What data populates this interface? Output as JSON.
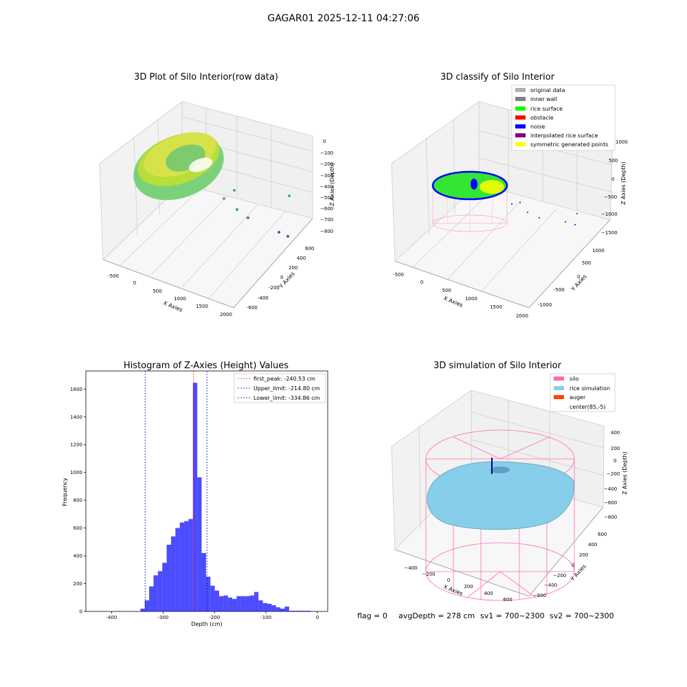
{
  "figure": {
    "suptitle": "GAGAR01 2025-12-11 04:27:06",
    "status": {
      "flag": "flag = 0",
      "avg": "avgDepth = 278 cm",
      "sv1": "sv1 = 700~2300",
      "sv2": "sv2 = 700~2300"
    }
  },
  "chart_data": [
    {
      "type": "scatter3d",
      "title": "3D Plot of Silo Interior(row data)",
      "xlabel": "X Axies",
      "ylabel": "Y Axies",
      "zlabel": "Z Axies (Depth)",
      "xticks": [
        "-500",
        "0",
        "500",
        "1000",
        "1500",
        "2000"
      ],
      "yticks": [
        "-600",
        "-400",
        "-200",
        "0",
        "200",
        "400",
        "600"
      ],
      "zticks": [
        "0",
        "−100",
        "−200",
        "−300",
        "−400",
        "−500",
        "−600",
        "−700",
        "−800"
      ],
      "colormap": "viridis",
      "grid": true
    },
    {
      "type": "scatter3d",
      "title": "3D classify of Silo Interior",
      "xlabel": "X Axies",
      "ylabel": "Y Axies",
      "zlabel": "Z Axies (Depth)",
      "xticks": [
        "-500",
        "0",
        "500",
        "1000",
        "1500",
        "2000"
      ],
      "yticks": [
        "-1000",
        "-500",
        "0",
        "500",
        "1000"
      ],
      "zticks": [
        "1000",
        "500",
        "0",
        "−500",
        "−1000",
        "−1500"
      ],
      "legend_position": "upper-right",
      "legend": [
        {
          "label": "original data",
          "color": "#b0b0b0"
        },
        {
          "label": "inner wall",
          "color": "#808080"
        },
        {
          "label": "rice surface",
          "color": "#00ff00"
        },
        {
          "label": "obstacle",
          "color": "#ff0000"
        },
        {
          "label": "noise",
          "color": "#0000ff"
        },
        {
          "label": "interpolated rice surface",
          "color": "#800080"
        },
        {
          "label": "symmetric generated points",
          "color": "#ffff00"
        }
      ]
    },
    {
      "type": "bar",
      "title": "Histogram of Z-Axies (Height) Values",
      "xlabel": "Depth (cm)",
      "ylabel": "Frequency",
      "xlim": [
        -450,
        20
      ],
      "ylim": [
        0,
        1730
      ],
      "xticks": [
        -400,
        -300,
        -200,
        -100,
        0
      ],
      "yticks": [
        0,
        200,
        400,
        600,
        800,
        1000,
        1200,
        1400,
        1600
      ],
      "bar_color": "#0000ff",
      "bin_width": 8.5,
      "bin_starts": [
        -344,
        -335.5,
        -327,
        -318.5,
        -310,
        -301.5,
        -293,
        -284.5,
        -276,
        -267.5,
        -259,
        -250.5,
        -242,
        -233.5,
        -225,
        -216.5,
        -208,
        -199.5,
        -191,
        -182.5,
        -174,
        -165.5,
        -157,
        -148.5,
        -140,
        -131.5,
        -123,
        -114.5,
        -106,
        -97.5,
        -89,
        -80.5,
        -72,
        -63.5,
        -55,
        -46.5,
        -38,
        -29.5,
        -21
      ],
      "values": [
        20,
        80,
        180,
        260,
        290,
        350,
        480,
        540,
        600,
        640,
        650,
        665,
        1645,
        965,
        420,
        250,
        185,
        150,
        110,
        115,
        100,
        90,
        110,
        110,
        110,
        115,
        140,
        80,
        60,
        55,
        45,
        30,
        20,
        35,
        5,
        5,
        5,
        5,
        5
      ],
      "vlines": [
        {
          "x": -240.53,
          "color": "#ff0000",
          "label": "first_peak: -240.53 cm"
        },
        {
          "x": -214.8,
          "color": "#0000cc",
          "label": "Upper_limit: -214.80 cm"
        },
        {
          "x": -334.86,
          "color": "#0000cc",
          "label": "Lower_limit: -334.86 cm"
        }
      ],
      "legend_position": "upper-right"
    },
    {
      "type": "surface3d",
      "title": "3D simulation of Silo Interior",
      "xlabel": "X Axies",
      "ylabel": "Y Axies",
      "zlabel": "Z Axies (Depth)",
      "xticks": [
        "−400",
        "−200",
        "0",
        "200",
        "400",
        "600"
      ],
      "yticks": [
        "−600",
        "−400",
        "−200",
        "0",
        "200",
        "400",
        "600"
      ],
      "zticks": [
        "400",
        "200",
        "0",
        "−200",
        "−400",
        "−600",
        "−800"
      ],
      "legend_position": "upper-right",
      "legend": [
        {
          "label": "silo",
          "color": "#ff69b4"
        },
        {
          "label": "rice simulation",
          "color": "#87ceeb"
        },
        {
          "label": "auger",
          "color": "#ff4500"
        },
        {
          "label": "center(85,-5)",
          "color": ""
        }
      ]
    }
  ]
}
